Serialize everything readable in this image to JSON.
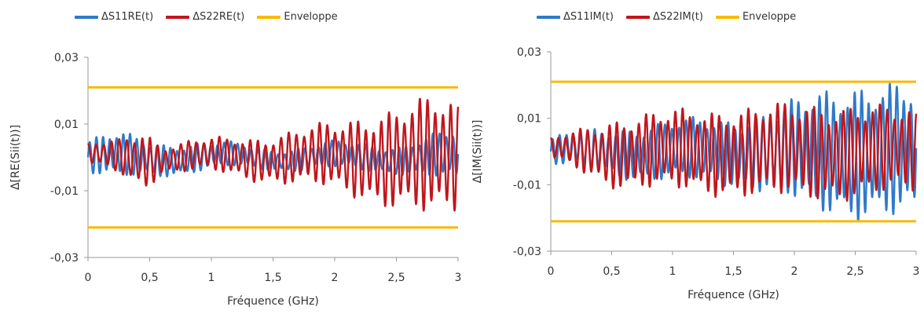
{
  "colors": {
    "s11": "#2e7ac9",
    "s22": "#c0161c",
    "envelope": "#f8ba00",
    "axis": "#9a9a9a"
  },
  "chart_data": [
    {
      "type": "line",
      "xlabel": "Fréquence (GHz)",
      "ylabel": "Δ[RE(Sii(t))]",
      "xlim": [
        0,
        3
      ],
      "ylim": [
        -0.03,
        0.03
      ],
      "xticks": [
        "0",
        "0,5",
        "1",
        "1,5",
        "2",
        "2,5",
        "3"
      ],
      "yticks": [
        "0,03",
        "0,01",
        "-0,01",
        "-0,03"
      ],
      "legend_position": "top",
      "series": [
        {
          "name": "ΔS11RE(t)",
          "kind": "oscillation",
          "amp_x": [
            0,
            0.25,
            0.5,
            1,
            1.5,
            2,
            2.5,
            3
          ],
          "amp_y": [
            0.005,
            0.007,
            0.005,
            0.004,
            0.003,
            0.004,
            0.004,
            0.008
          ],
          "cycles": 55
        },
        {
          "name": "ΔS22RE(t)",
          "kind": "oscillation",
          "amp_x": [
            0,
            0.25,
            0.45,
            0.6,
            1,
            1.5,
            2,
            2.5,
            2.8,
            3
          ],
          "amp_y": [
            0.003,
            0.005,
            0.009,
            0.004,
            0.005,
            0.007,
            0.01,
            0.015,
            0.018,
            0.016
          ],
          "cycles": 48
        },
        {
          "name": "Enveloppe",
          "kind": "envelope",
          "values": [
            0.021,
            -0.021
          ]
        }
      ]
    },
    {
      "type": "line",
      "xlabel": "Fréquence (GHz)",
      "ylabel": "Δ[IM(Sii(t))]",
      "xlim": [
        0,
        3
      ],
      "ylim": [
        -0.03,
        0.03
      ],
      "xticks": [
        "0",
        "0,5",
        "1",
        "1,5",
        "2",
        "2,5",
        "3"
      ],
      "yticks": [
        "0,03",
        "0,01",
        "-0,01",
        "-0,03"
      ],
      "legend_position": "top",
      "series": [
        {
          "name": "ΔS11IM(t)",
          "kind": "oscillation",
          "amp_x": [
            0,
            0.5,
            1,
            1.5,
            1.8,
            2,
            2.2,
            2.5,
            3
          ],
          "amp_y": [
            0.004,
            0.007,
            0.009,
            0.01,
            0.012,
            0.015,
            0.018,
            0.02,
            0.02
          ],
          "cycles": 52
        },
        {
          "name": "ΔS22IM(t)",
          "kind": "oscillation",
          "amp_x": [
            0,
            0.5,
            1,
            1.5,
            2,
            2.5,
            3
          ],
          "amp_y": [
            0.003,
            0.01,
            0.012,
            0.013,
            0.014,
            0.014,
            0.012
          ],
          "cycles": 50
        },
        {
          "name": "Enveloppe",
          "kind": "envelope",
          "values": [
            0.021,
            -0.021
          ]
        }
      ]
    }
  ]
}
